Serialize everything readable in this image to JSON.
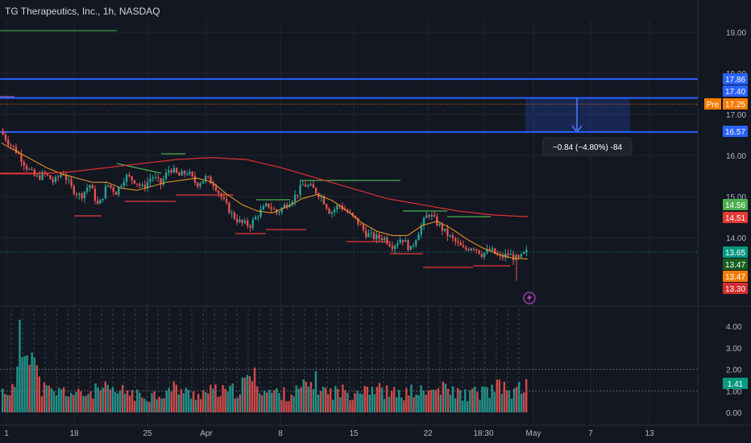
{
  "header": {
    "title": "TG Therapeutics, Inc., 1h, NASDAQ"
  },
  "colors": {
    "background": "#131722",
    "up": "#26a69a",
    "down": "#ef5350",
    "level_line": "#2962ff",
    "ema_fast": "#f0a020",
    "ema_slow": "#e03030",
    "swing_high": "#4caf50",
    "swing_low": "#e53935"
  },
  "chart_data": {
    "type": "candlestick",
    "price_axis": {
      "ticks": [
        "19.00",
        "18.00",
        "17.00",
        "16.00",
        "15.00",
        "14.00"
      ],
      "range": [
        12.7,
        19.5
      ]
    },
    "volume_axis": {
      "ticks": [
        "4.00",
        "3.00",
        "2.00",
        "1.00",
        "0.00"
      ],
      "range": [
        0,
        5
      ]
    },
    "time_axis": [
      "1",
      "18",
      "25",
      "Apr",
      "8",
      "15",
      "22",
      "18:30",
      "May",
      "7",
      "13"
    ],
    "horizontal_levels": [
      17.86,
      17.4,
      16.57
    ],
    "premarket_line": 17.25,
    "price_labels": [
      {
        "text": "17.86",
        "value": 17.86,
        "color": "#2962ff"
      },
      {
        "text": "17.40",
        "value": 17.4,
        "color": "#2962ff"
      },
      {
        "text": "17.25",
        "value": 17.25,
        "color": "#f57c00",
        "prefix": "Pre"
      },
      {
        "text": "16.57",
        "value": 16.57,
        "color": "#2962ff"
      },
      {
        "text": "14.56",
        "value": 14.56,
        "color": "#4caf50"
      },
      {
        "text": "14.51",
        "value": 14.51,
        "color": "#e53935"
      },
      {
        "text": "13.65",
        "value": 13.65,
        "color": "#089981"
      },
      {
        "text": "13.47",
        "value": 13.47,
        "color": "#1b5e20"
      },
      {
        "text": "13.47",
        "value": 13.47,
        "color": "#f57c00"
      },
      {
        "text": "13.30",
        "value": 13.3,
        "color": "#d32f2f"
      }
    ],
    "volume_label": {
      "text": "1.41",
      "value": 1.41
    },
    "measure": {
      "from": 17.4,
      "to": 16.57,
      "label": "−0.84 (−4.80%) -84"
    },
    "price_path": [
      16.6,
      16.3,
      16.05,
      15.7,
      15.45,
      15.55,
      15.35,
      15.6,
      15.2,
      15.0,
      15.3,
      14.75,
      15.3,
      15.1,
      15.5,
      15.4,
      15.2,
      15.5,
      15.3,
      15.7,
      15.5,
      15.6,
      15.3,
      15.45,
      15.3,
      14.9,
      14.55,
      14.35,
      14.3,
      14.6,
      14.8,
      14.6,
      14.8,
      15.0,
      15.3,
      15.2,
      15.0,
      14.6,
      14.8,
      14.6,
      14.4,
      14.1,
      14.0,
      14.0,
      13.8,
      14.0,
      13.7,
      14.2,
      14.6,
      14.35,
      14.1,
      13.9,
      13.7,
      13.8,
      13.6,
      13.7,
      13.5,
      13.6,
      13.45,
      13.65
    ],
    "ema_fast": [
      16.3,
      16.1,
      15.9,
      15.7,
      15.55,
      15.45,
      15.35,
      15.35,
      15.2,
      15.15,
      15.25,
      15.35,
      15.4,
      15.45,
      15.35,
      15.05,
      14.8,
      14.65,
      14.6,
      14.75,
      14.95,
      15.05,
      14.9,
      14.65,
      14.35,
      14.15,
      14.05,
      14.05,
      14.3,
      14.4,
      14.2,
      13.95,
      13.75,
      13.6,
      13.5,
      13.48
    ],
    "ema_slow": [
      15.55,
      15.55,
      15.6,
      15.7,
      15.8,
      15.9,
      15.95,
      15.9,
      15.7,
      15.45,
      15.2,
      14.95,
      14.8,
      14.65,
      14.55,
      14.51
    ],
    "volume_path": [
      1.1,
      1.2,
      4.3,
      1.3,
      1.0,
      1.1,
      0.9,
      1.0,
      1.2,
      1.0,
      1.1,
      0.8,
      0.9,
      1.0,
      1.3,
      0.9,
      1.0,
      1.1,
      1.0,
      1.2,
      1.9,
      1.1,
      1.0,
      0.9,
      1.2,
      1.6,
      1.0,
      1.1,
      1.0,
      1.4,
      1.2,
      1.0,
      0.9,
      1.1,
      1.0,
      1.2,
      1.1,
      0.9,
      1.0,
      1.1,
      1.3,
      1.0,
      1.4
    ]
  }
}
